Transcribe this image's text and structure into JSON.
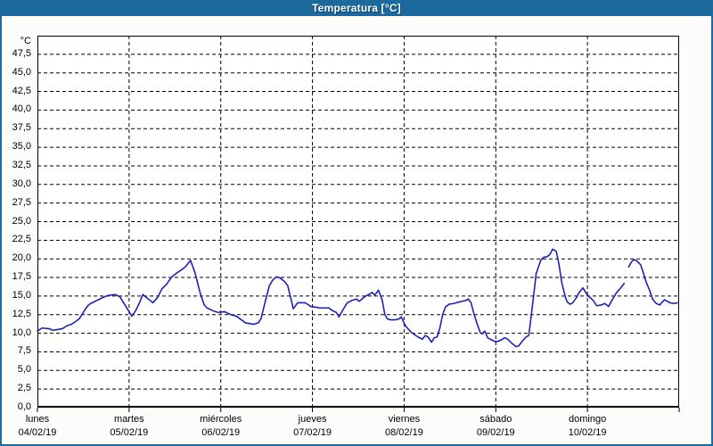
{
  "window": {
    "title": "Temperatura [°C]"
  },
  "colors": {
    "titlebar_bg": "#1c699e",
    "title_text": "#ffffff",
    "window_border": "#1e6a9c",
    "page_bg": "#fcfdfb",
    "plot_bg": "#ffffff",
    "plot_border": "#000000",
    "gridline": "#000000",
    "line": "#2121b8",
    "label_text": "#000000"
  },
  "y_axis": {
    "unit_label": "°C",
    "tick_labels": [
      "47,5",
      "45,0",
      "42,5",
      "40,0",
      "37,5",
      "35,0",
      "32,5",
      "30,0",
      "27,5",
      "25,0",
      "22,5",
      "20,0",
      "17,5",
      "15,0",
      "12,5",
      "10,0",
      "7,5",
      "5,0",
      "2,5",
      "0,0"
    ],
    "tick_values": [
      47.5,
      45,
      42.5,
      40,
      37.5,
      35,
      32.5,
      30,
      27.5,
      25,
      22.5,
      20,
      17.5,
      15,
      12.5,
      10,
      7.5,
      5,
      2.5,
      0
    ]
  },
  "x_axis": {
    "days": [
      {
        "name": "lunes",
        "date": "04/02/19"
      },
      {
        "name": "martes",
        "date": "05/02/19"
      },
      {
        "name": "miércoles",
        "date": "06/02/19"
      },
      {
        "name": "jueves",
        "date": "07/02/19"
      },
      {
        "name": "viernes",
        "date": "08/02/19"
      },
      {
        "name": "sábado",
        "date": "09/02/19"
      },
      {
        "name": "domingo",
        "date": "10/02/19"
      }
    ]
  },
  "chart_data": {
    "type": "line",
    "title": "Temperatura [°C]",
    "xlabel": "",
    "ylabel": "°C",
    "ylim": [
      0,
      50
    ],
    "y_step": 2.5,
    "x_days": 7,
    "grid": "dashed",
    "legend": "none",
    "series": [
      {
        "name": "Temperatura",
        "units": "°C",
        "x_units": "days since lunes 04/02/19 00:00",
        "points": [
          [
            0.0,
            10.3
          ],
          [
            0.05,
            10.7
          ],
          [
            0.13,
            10.6
          ],
          [
            0.17,
            10.4
          ],
          [
            0.22,
            10.5
          ],
          [
            0.27,
            10.6
          ],
          [
            0.32,
            11.0
          ],
          [
            0.37,
            11.2
          ],
          [
            0.42,
            11.6
          ],
          [
            0.46,
            12.0
          ],
          [
            0.49,
            12.6
          ],
          [
            0.52,
            13.2
          ],
          [
            0.55,
            13.7
          ],
          [
            0.58,
            14.0
          ],
          [
            0.63,
            14.3
          ],
          [
            0.68,
            14.6
          ],
          [
            0.73,
            14.9
          ],
          [
            0.78,
            15.1
          ],
          [
            0.85,
            15.2
          ],
          [
            0.9,
            14.9
          ],
          [
            0.94,
            14.1
          ],
          [
            0.98,
            13.3
          ],
          [
            1.03,
            12.3
          ],
          [
            1.07,
            13.0
          ],
          [
            1.11,
            14.0
          ],
          [
            1.15,
            15.2
          ],
          [
            1.19,
            14.8
          ],
          [
            1.22,
            14.5
          ],
          [
            1.26,
            14.1
          ],
          [
            1.31,
            14.8
          ],
          [
            1.36,
            16.0
          ],
          [
            1.41,
            16.6
          ],
          [
            1.46,
            17.5
          ],
          [
            1.52,
            18.1
          ],
          [
            1.58,
            18.6
          ],
          [
            1.62,
            19.0
          ],
          [
            1.67,
            19.8
          ],
          [
            1.72,
            18.1
          ],
          [
            1.75,
            16.6
          ],
          [
            1.78,
            15.2
          ],
          [
            1.82,
            13.8
          ],
          [
            1.85,
            13.4
          ],
          [
            1.92,
            13.0
          ],
          [
            1.97,
            12.8
          ],
          [
            2.04,
            12.9
          ],
          [
            2.11,
            12.5
          ],
          [
            2.17,
            12.3
          ],
          [
            2.27,
            11.4
          ],
          [
            2.36,
            11.2
          ],
          [
            2.41,
            11.4
          ],
          [
            2.44,
            12.0
          ],
          [
            2.48,
            14.0
          ],
          [
            2.53,
            16.4
          ],
          [
            2.57,
            17.2
          ],
          [
            2.61,
            17.6
          ],
          [
            2.65,
            17.4
          ],
          [
            2.7,
            16.9
          ],
          [
            2.73,
            16.4
          ],
          [
            2.77,
            14.4
          ],
          [
            2.79,
            13.3
          ],
          [
            2.84,
            14.1
          ],
          [
            2.92,
            14.1
          ],
          [
            2.96,
            13.8
          ],
          [
            2.98,
            13.6
          ],
          [
            3.04,
            13.5
          ],
          [
            3.08,
            13.4
          ],
          [
            3.13,
            13.4
          ],
          [
            3.18,
            13.4
          ],
          [
            3.21,
            13.1
          ],
          [
            3.26,
            12.8
          ],
          [
            3.29,
            12.2
          ],
          [
            3.33,
            13.1
          ],
          [
            3.38,
            14.1
          ],
          [
            3.43,
            14.4
          ],
          [
            3.48,
            14.6
          ],
          [
            3.51,
            14.3
          ],
          [
            3.58,
            15.0
          ],
          [
            3.63,
            15.3
          ],
          [
            3.65,
            15.5
          ],
          [
            3.68,
            15.1
          ],
          [
            3.72,
            15.8
          ],
          [
            3.76,
            14.5
          ],
          [
            3.79,
            12.5
          ],
          [
            3.82,
            11.9
          ],
          [
            3.86,
            11.8
          ],
          [
            3.9,
            11.8
          ],
          [
            3.94,
            11.9
          ],
          [
            3.97,
            12.2
          ],
          [
            3.99,
            11.6
          ],
          [
            4.02,
            10.9
          ],
          [
            4.08,
            10.1
          ],
          [
            4.15,
            9.5
          ],
          [
            4.2,
            9.2
          ],
          [
            4.23,
            9.7
          ],
          [
            4.26,
            9.5
          ],
          [
            4.3,
            8.8
          ],
          [
            4.33,
            9.4
          ],
          [
            4.36,
            9.5
          ],
          [
            4.39,
            10.7
          ],
          [
            4.42,
            12.5
          ],
          [
            4.45,
            13.5
          ],
          [
            4.49,
            13.9
          ],
          [
            4.54,
            14.0
          ],
          [
            4.6,
            14.2
          ],
          [
            4.67,
            14.4
          ],
          [
            4.7,
            14.6
          ],
          [
            4.73,
            14.1
          ],
          [
            4.76,
            12.7
          ],
          [
            4.79,
            11.5
          ],
          [
            4.83,
            10.1
          ],
          [
            4.85,
            9.9
          ],
          [
            4.88,
            10.3
          ],
          [
            4.91,
            9.4
          ],
          [
            4.94,
            9.2
          ],
          [
            4.99,
            8.9
          ],
          [
            5.02,
            8.9
          ],
          [
            5.06,
            9.1
          ],
          [
            5.1,
            9.4
          ],
          [
            5.13,
            9.2
          ],
          [
            5.18,
            8.6
          ],
          [
            5.22,
            8.2
          ],
          [
            5.25,
            8.3
          ],
          [
            5.3,
            9.1
          ],
          [
            5.33,
            9.5
          ],
          [
            5.36,
            9.7
          ],
          [
            5.39,
            12.7
          ],
          [
            5.42,
            15.8
          ],
          [
            5.44,
            18.0
          ],
          [
            5.49,
            19.8
          ],
          [
            5.52,
            20.2
          ],
          [
            5.56,
            20.3
          ],
          [
            5.59,
            20.6
          ],
          [
            5.62,
            21.3
          ],
          [
            5.66,
            21.0
          ],
          [
            5.69,
            19.2
          ],
          [
            5.72,
            16.8
          ],
          [
            5.76,
            14.8
          ],
          [
            5.78,
            14.2
          ],
          [
            5.81,
            13.9
          ],
          [
            5.84,
            14.1
          ],
          [
            5.88,
            14.8
          ],
          [
            5.91,
            15.5
          ],
          [
            5.95,
            16.1
          ],
          [
            5.98,
            15.5
          ],
          [
            6.01,
            15.0
          ],
          [
            6.04,
            14.7
          ],
          [
            6.07,
            14.3
          ],
          [
            6.1,
            13.7
          ],
          [
            6.15,
            13.8
          ],
          [
            6.19,
            14.0
          ],
          [
            6.23,
            13.6
          ],
          [
            6.27,
            14.5
          ],
          [
            6.32,
            15.5
          ],
          [
            6.37,
            16.2
          ],
          [
            6.4,
            16.7
          ],
          [
            6.42,
            null
          ],
          [
            6.45,
            18.9
          ],
          [
            6.48,
            19.6
          ],
          [
            6.51,
            19.9
          ],
          [
            6.54,
            19.7
          ],
          [
            6.58,
            19.2
          ],
          [
            6.61,
            18.1
          ],
          [
            6.64,
            16.9
          ],
          [
            6.68,
            15.7
          ],
          [
            6.71,
            14.6
          ],
          [
            6.75,
            14.0
          ],
          [
            6.79,
            13.8
          ],
          [
            6.81,
            14.1
          ],
          [
            6.84,
            14.5
          ],
          [
            6.87,
            14.3
          ],
          [
            6.9,
            14.1
          ],
          [
            6.94,
            14.0
          ],
          [
            6.98,
            14.1
          ]
        ]
      }
    ]
  }
}
